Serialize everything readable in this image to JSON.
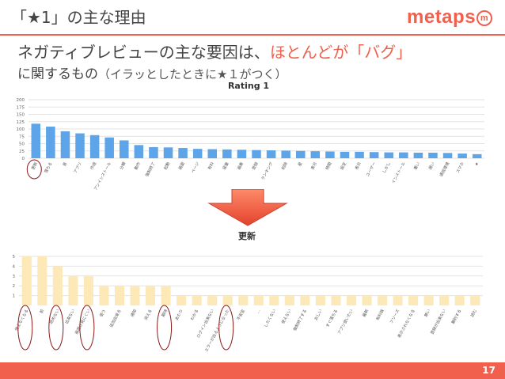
{
  "slide": {
    "title": "「★1」の主な理由",
    "logo_text": "metaps",
    "logo_mark": "m",
    "line1_prefix": "ネガティブレビューの主な要因は、",
    "line1_highlight": "ほとんどが「バグ」",
    "line2_main": "に関するもの",
    "line2_sub": "（イラッとしたときに★１がつく）",
    "page_number": "17",
    "accent_color": "#f0604d"
  },
  "chart_data": [
    {
      "type": "bar",
      "title": "Rating 1",
      "ylim": [
        0,
        200
      ],
      "yticks": [
        "200",
        "175",
        "150",
        "125",
        "100",
        "75",
        "50",
        "25",
        "0"
      ],
      "bar_color": "#5da5e8",
      "categories": [
        "更新",
        "落ちる",
        "音",
        "アプリ",
        "作成",
        "アンインストール",
        "分類",
        "動作",
        "強制終了",
        "起動",
        "画面",
        "ページ",
        "有料",
        "容量",
        "画像",
        "登録",
        "ランキング",
        "削除",
        "星",
        "表示",
        "時間",
        "設定",
        "表示",
        "ユーザー",
        "しかし",
        "インストール",
        "重い",
        "遅い",
        "通信環境",
        "スマホ",
        "★"
      ],
      "values": [
        118,
        108,
        92,
        85,
        79,
        71,
        61,
        45,
        38,
        37,
        35,
        32,
        31,
        30,
        29,
        28,
        27,
        26,
        25,
        24,
        23,
        22,
        22,
        21,
        20,
        20,
        19,
        19,
        18,
        16,
        14
      ],
      "circled_index": 0
    },
    {
      "type": "bar",
      "title": "更新",
      "ylim": [
        0,
        5
      ],
      "yticks": [
        "5",
        "4",
        "3",
        "2",
        "1"
      ],
      "bar_color": "#fde9b8",
      "categories": [
        "使えなくなる",
        "前",
        "読めない",
        "出来ない",
        "画面が見にくい",
        "使う",
        "追加出来る",
        "通知",
        "消える",
        "期待",
        "あたり",
        "わかる",
        "ログイン出来ない",
        "エラーが出るようになった",
        "不安定",
        "…",
        "したくない",
        "使えない",
        "強制終了する",
        "おしい",
        "すぐ落ちる",
        "アプリ使いたい",
        "最新",
        "有料版",
        "フリーズ",
        "表示されなくなる",
        "無い",
        "登録が出来ない",
        "解約する",
        "読む"
      ],
      "values": [
        5,
        5,
        4,
        3,
        3,
        2,
        2,
        2,
        2,
        2,
        1,
        1,
        1,
        1,
        1,
        1,
        1,
        1,
        1,
        1,
        1,
        1,
        1,
        1,
        1,
        1,
        1,
        1,
        1,
        1
      ],
      "circled_indices": [
        0,
        2,
        4,
        9,
        13
      ]
    }
  ]
}
